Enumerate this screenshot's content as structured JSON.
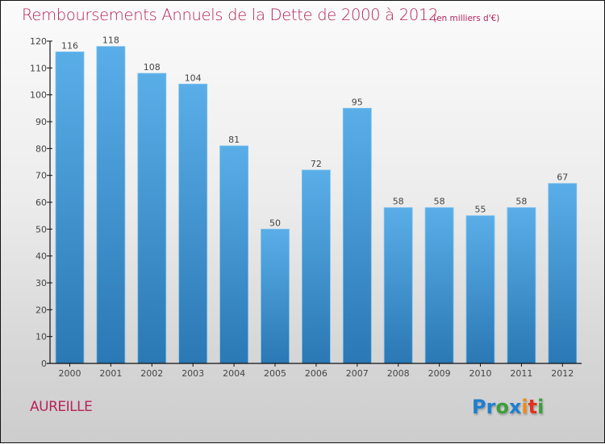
{
  "header": {
    "title": "Remboursements Annuels de la Dette de 2000 à 2012",
    "unit_note": "(en milliers d'€)"
  },
  "footer": {
    "commune": "AUREILLE",
    "logo": {
      "letters": [
        {
          "char": "P",
          "color": "#1f7fd0"
        },
        {
          "char": "r",
          "color": "#1f7fd0"
        },
        {
          "char": "o",
          "color": "#3aa03a"
        },
        {
          "char": "x",
          "color": "#1f7fd0"
        },
        {
          "char": "i",
          "color": "#f08a1c"
        },
        {
          "char": "t",
          "color": "#e0321e"
        },
        {
          "char": "i",
          "color": "#3aa03a"
        }
      ]
    }
  },
  "colors": {
    "title": "#b5245a",
    "bar_top": "#5aaee8",
    "bar_bottom": "#2a78b4",
    "axis": "#111111"
  },
  "chart_data": {
    "type": "bar",
    "title": "Remboursements Annuels de la Dette de 2000 à 2012",
    "subtitle": "(en milliers d'€)",
    "xlabel": "",
    "ylabel": "",
    "categories": [
      "2000",
      "2001",
      "2002",
      "2003",
      "2004",
      "2005",
      "2006",
      "2007",
      "2008",
      "2009",
      "2010",
      "2011",
      "2012"
    ],
    "values": [
      116,
      118,
      108,
      104,
      81,
      50,
      72,
      95,
      58,
      58,
      55,
      58,
      67
    ],
    "ylim": [
      0,
      120
    ],
    "yticks": [
      0,
      10,
      20,
      30,
      40,
      50,
      60,
      70,
      80,
      90,
      100,
      110,
      120
    ],
    "grid": false,
    "legend": "none",
    "data_labels": true
  }
}
